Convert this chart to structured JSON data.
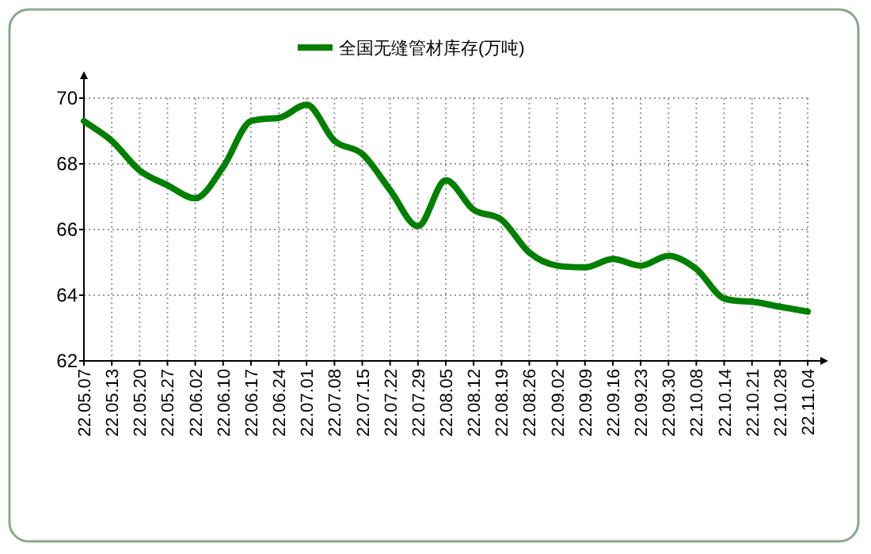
{
  "chart_data": {
    "type": "line",
    "categories": [
      "22.05.07",
      "22.05.13",
      "22.05.20",
      "22.05.27",
      "22.06.02",
      "22.06.10",
      "22.06.17",
      "22.06.24",
      "22.07.01",
      "22.07.08",
      "22.07.15",
      "22.07.22",
      "22.07.29",
      "22.08.05",
      "22.08.12",
      "22.08.19",
      "22.08.26",
      "22.09.02",
      "22.09.09",
      "22.09.16",
      "22.09.23",
      "22.09.30",
      "22.10.08",
      "22.10.14",
      "22.10.21",
      "22.10.28",
      "22.11.04"
    ],
    "series": [
      {
        "name": "全国无缝管材库存(万吨)",
        "color": "#008000",
        "values": [
          69.3,
          68.7,
          67.8,
          67.35,
          66.95,
          67.9,
          69.3,
          69.4,
          69.8,
          68.7,
          68.3,
          67.2,
          66.1,
          67.5,
          66.6,
          66.3,
          65.3,
          64.9,
          64.85,
          65.1,
          64.9,
          65.2,
          64.8,
          63.9,
          63.8,
          63.65,
          63.5
        ]
      }
    ],
    "ylim": [
      62,
      70
    ],
    "yticks": [
      62,
      64,
      66,
      68,
      70
    ],
    "grid": true,
    "legend": "top"
  }
}
